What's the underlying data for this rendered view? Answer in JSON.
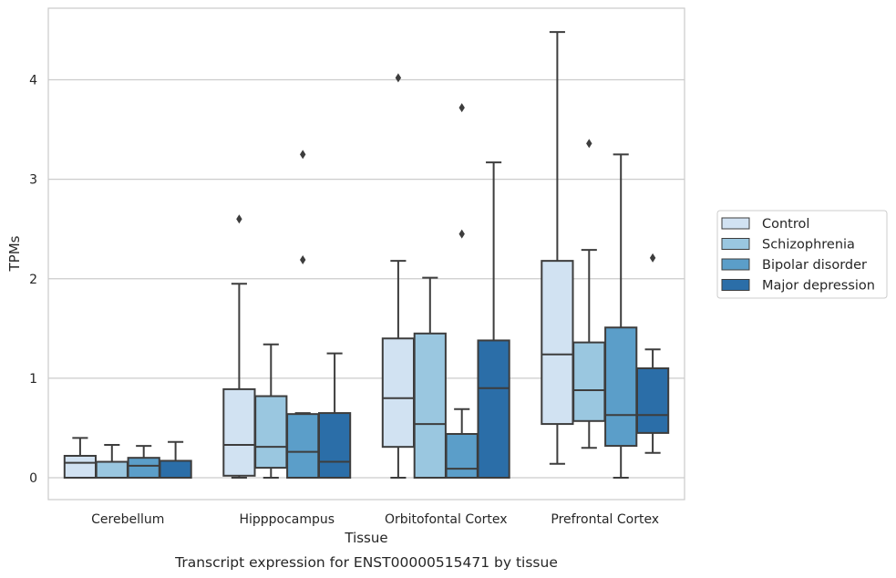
{
  "caption": "Transcript expression for ENST00000515471 by tissue",
  "chart_data": {
    "type": "box",
    "xlabel": "Tissue",
    "ylabel": "TPMs",
    "ylim": [
      -0.22,
      4.72
    ],
    "yticks": [
      0,
      1,
      2,
      3,
      4
    ],
    "grid": "horizontal",
    "legend_position": "right",
    "categories": [
      "Cerebellum",
      "Hipppocampus",
      "Orbitofontal Cortex",
      "Prefrontal Cortex"
    ],
    "colors": [
      "#d1e2f2",
      "#9ac7e0",
      "#5b9ec9",
      "#2b6ea8"
    ],
    "edge_color": "#3d3d3d",
    "series": [
      {
        "name": "Control",
        "boxes": [
          {
            "whislo": 0.0,
            "q1": 0.0,
            "med": 0.15,
            "q3": 0.22,
            "whishi": 0.4,
            "fliers": []
          },
          {
            "whislo": 0.0,
            "q1": 0.02,
            "med": 0.33,
            "q3": 0.89,
            "whishi": 1.95,
            "fliers": [
              2.6
            ]
          },
          {
            "whislo": 0.0,
            "q1": 0.31,
            "med": 0.8,
            "q3": 1.4,
            "whishi": 2.18,
            "fliers": [
              4.02
            ]
          },
          {
            "whislo": 0.14,
            "q1": 0.54,
            "med": 1.24,
            "q3": 2.18,
            "whishi": 4.48,
            "fliers": []
          }
        ]
      },
      {
        "name": "Schizophrenia",
        "boxes": [
          {
            "whislo": 0.0,
            "q1": 0.0,
            "med": 0.0,
            "q3": 0.16,
            "whishi": 0.33,
            "fliers": []
          },
          {
            "whislo": 0.0,
            "q1": 0.1,
            "med": 0.31,
            "q3": 0.82,
            "whishi": 1.34,
            "fliers": []
          },
          {
            "whislo": 0.0,
            "q1": 0.0,
            "med": 0.54,
            "q3": 1.45,
            "whishi": 2.01,
            "fliers": []
          },
          {
            "whislo": 0.3,
            "q1": 0.57,
            "med": 0.88,
            "q3": 1.36,
            "whishi": 2.29,
            "fliers": [
              3.36
            ]
          }
        ]
      },
      {
        "name": "Bipolar disorder",
        "boxes": [
          {
            "whislo": 0.0,
            "q1": 0.0,
            "med": 0.12,
            "q3": 0.2,
            "whishi": 0.32,
            "fliers": []
          },
          {
            "whislo": 0.0,
            "q1": 0.0,
            "med": 0.26,
            "q3": 0.64,
            "whishi": 0.65,
            "fliers": [
              2.19,
              3.25
            ]
          },
          {
            "whislo": 0.0,
            "q1": 0.0,
            "med": 0.09,
            "q3": 0.44,
            "whishi": 0.69,
            "fliers": [
              2.45,
              3.72
            ]
          },
          {
            "whislo": 0.0,
            "q1": 0.32,
            "med": 0.63,
            "q3": 1.51,
            "whishi": 3.25,
            "fliers": []
          }
        ]
      },
      {
        "name": "Major depression",
        "boxes": [
          {
            "whislo": 0.0,
            "q1": 0.0,
            "med": 0.0,
            "q3": 0.17,
            "whishi": 0.36,
            "fliers": []
          },
          {
            "whislo": 0.0,
            "q1": 0.0,
            "med": 0.16,
            "q3": 0.65,
            "whishi": 1.25,
            "fliers": []
          },
          {
            "whislo": 0.0,
            "q1": 0.0,
            "med": 0.9,
            "q3": 1.38,
            "whishi": 3.17,
            "fliers": []
          },
          {
            "whislo": 0.25,
            "q1": 0.45,
            "med": 0.63,
            "q3": 1.1,
            "whishi": 1.29,
            "fliers": [
              2.21
            ]
          }
        ]
      }
    ]
  }
}
